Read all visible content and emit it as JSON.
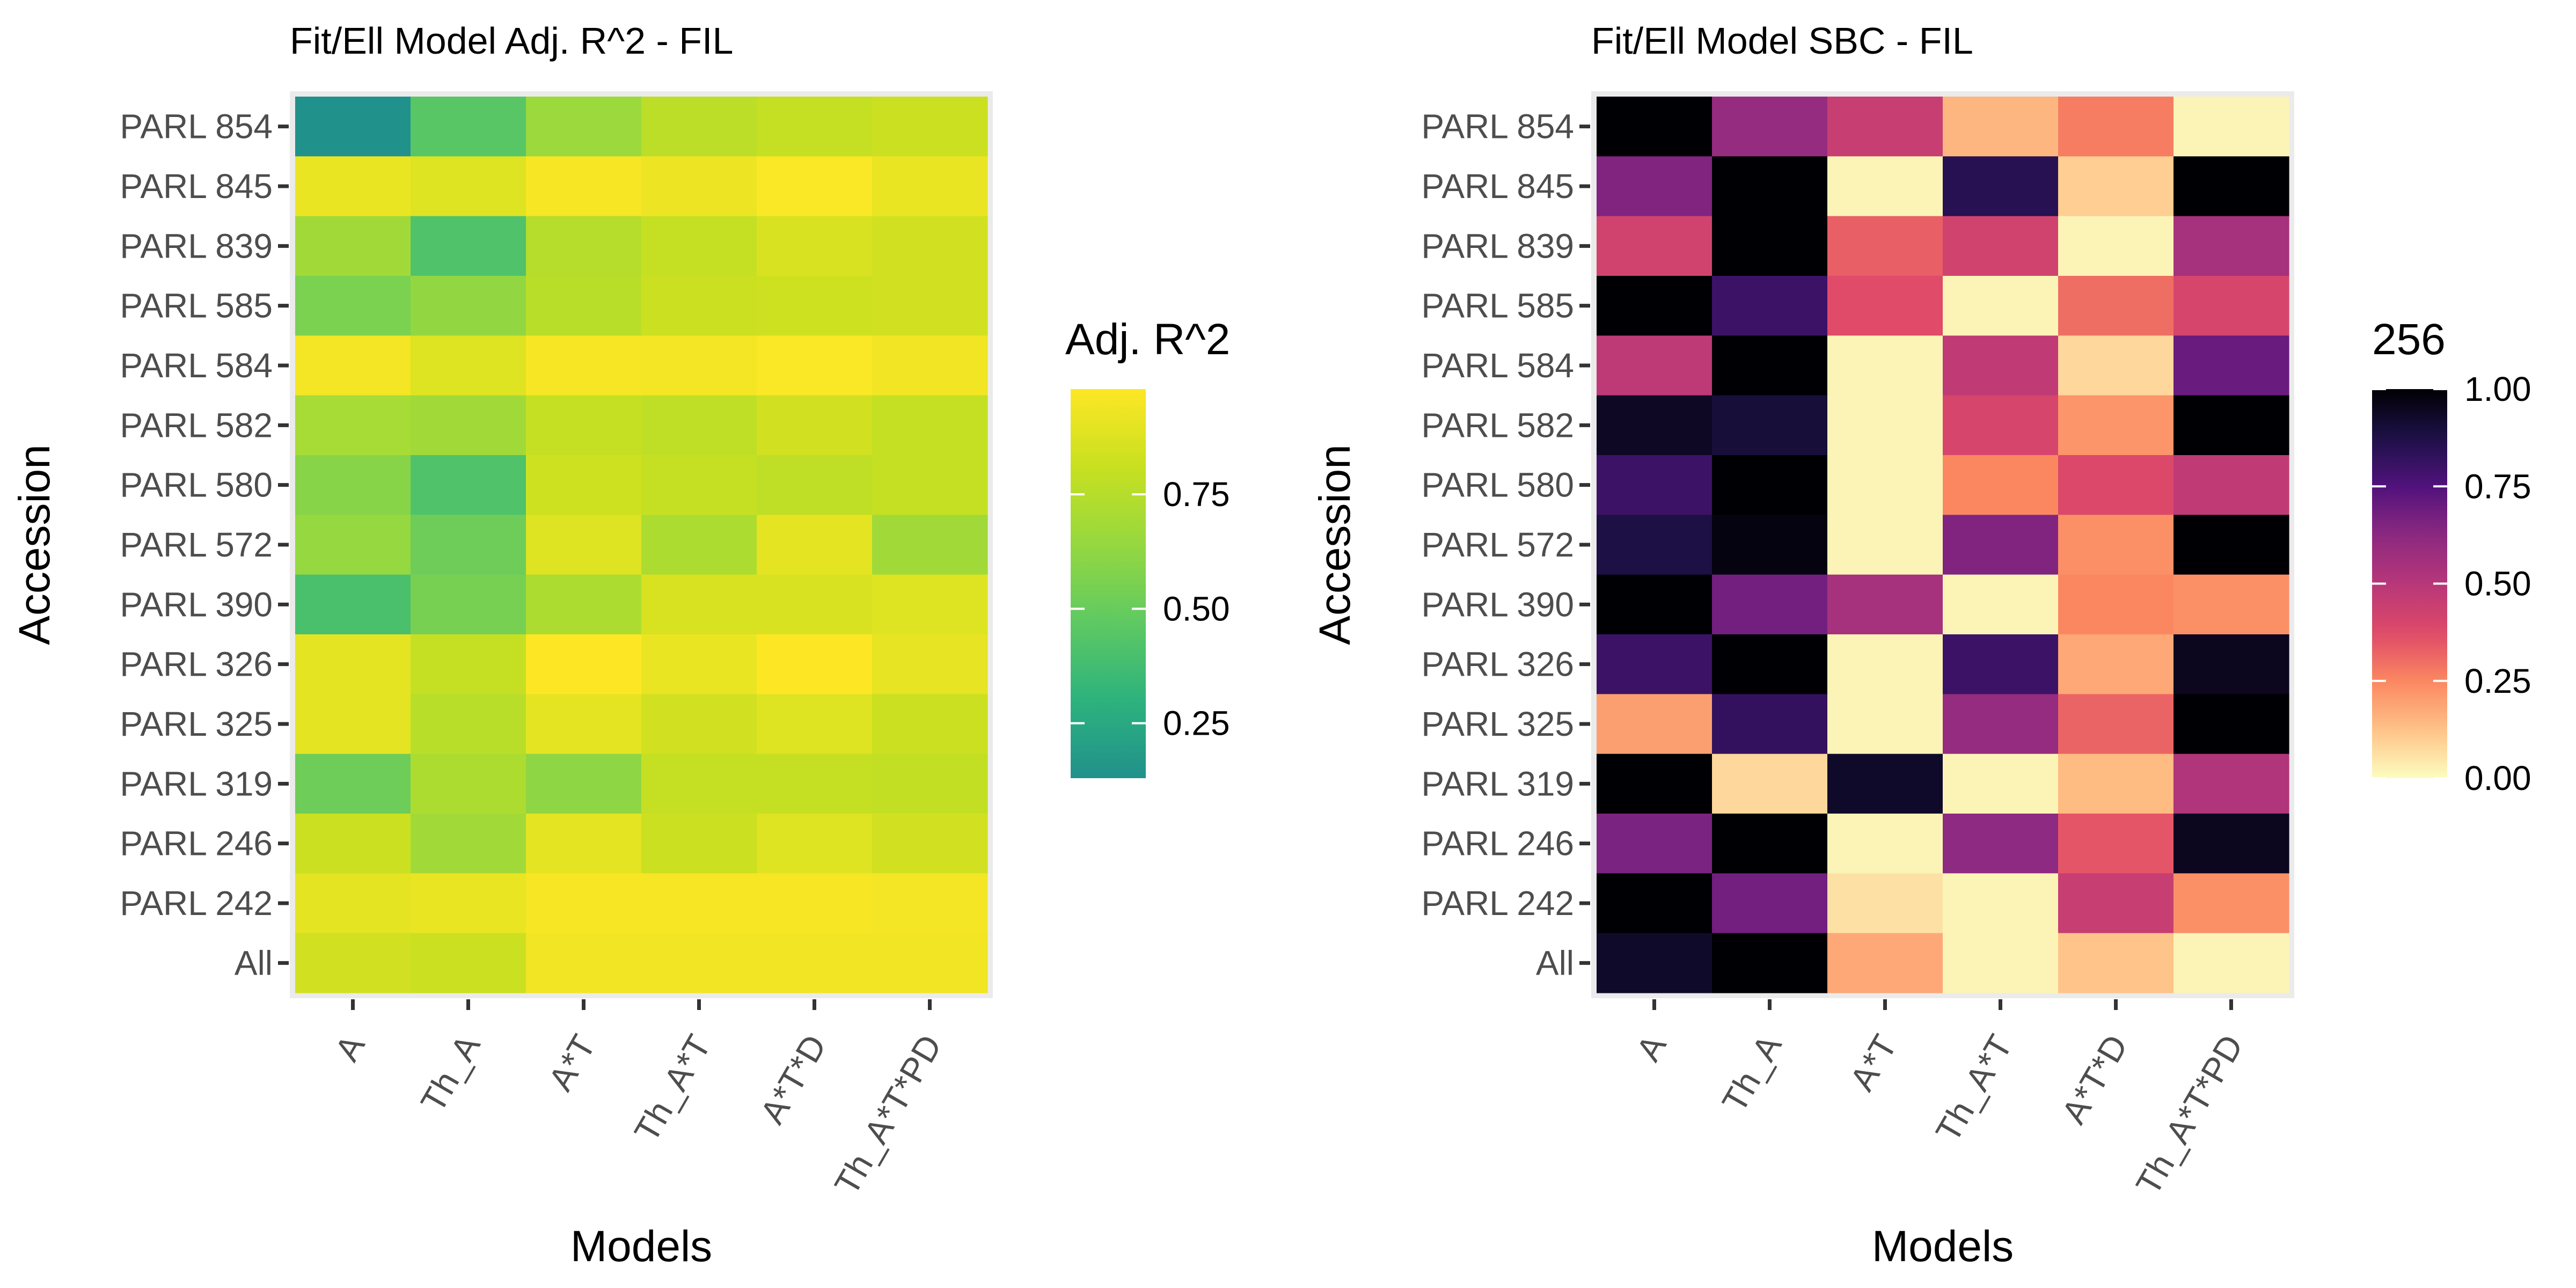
{
  "chart_data": [
    {
      "type": "heatmap",
      "title": "Fit/Ell Model Adj. R^2 - FIL",
      "xlabel": "Models",
      "ylabel": "Accession",
      "x_categories": [
        "A",
        "Th_A",
        "A*T",
        "Th_A*T",
        "A*T*D",
        "Th_A*T*PD"
      ],
      "y_categories": [
        "PARL 854",
        "PARL 845",
        "PARL 839",
        "PARL 585",
        "PARL 584",
        "PARL 582",
        "PARL 580",
        "PARL 572",
        "PARL 390",
        "PARL 326",
        "PARL 325",
        "PARL 319",
        "PARL 246",
        "PARL 242",
        "All"
      ],
      "values": [
        [
          0.13,
          0.45,
          0.66,
          0.77,
          0.8,
          0.82
        ],
        [
          0.92,
          0.88,
          0.96,
          0.93,
          0.97,
          0.92
        ],
        [
          0.68,
          0.42,
          0.75,
          0.8,
          0.86,
          0.84
        ],
        [
          0.56,
          0.63,
          0.76,
          0.82,
          0.83,
          0.84
        ],
        [
          0.95,
          0.88,
          0.96,
          0.95,
          0.97,
          0.94
        ],
        [
          0.7,
          0.68,
          0.8,
          0.78,
          0.84,
          0.8
        ],
        [
          0.6,
          0.42,
          0.83,
          0.8,
          0.78,
          0.8
        ],
        [
          0.64,
          0.52,
          0.88,
          0.72,
          0.9,
          0.68
        ],
        [
          0.4,
          0.55,
          0.72,
          0.86,
          0.86,
          0.88
        ],
        [
          0.9,
          0.8,
          0.98,
          0.92,
          0.98,
          0.91
        ],
        [
          0.9,
          0.76,
          0.9,
          0.84,
          0.88,
          0.82
        ],
        [
          0.52,
          0.72,
          0.62,
          0.8,
          0.8,
          0.79
        ],
        [
          0.82,
          0.68,
          0.9,
          0.82,
          0.88,
          0.84
        ],
        [
          0.9,
          0.92,
          0.96,
          0.96,
          0.96,
          0.95
        ],
        [
          0.84,
          0.82,
          0.94,
          0.94,
          0.94,
          0.94
        ]
      ],
      "legend_title": "Adj. R^2",
      "legend_ticks": [
        0.25,
        0.5,
        0.75
      ],
      "legend_tick_labels": [
        "0.25",
        "0.50",
        "0.75"
      ],
      "scale_range": [
        0.13,
        0.98
      ],
      "colormap": "viridis",
      "color_stops": [
        "#21918c",
        "#2db27d",
        "#5ec962",
        "#95d840",
        "#c8e020",
        "#fde725"
      ],
      "legend_position": "right",
      "panel_background": "#ebebeb"
    },
    {
      "type": "heatmap",
      "title": "Fit/Ell Model SBC - FIL",
      "xlabel": "Models",
      "ylabel": "Accession",
      "x_categories": [
        "A",
        "Th_A",
        "A*T",
        "Th_A*T",
        "A*T*D",
        "Th_A*T*PD"
      ],
      "y_categories": [
        "PARL 854",
        "PARL 845",
        "PARL 839",
        "PARL 585",
        "PARL 584",
        "PARL 582",
        "PARL 580",
        "PARL 572",
        "PARL 390",
        "PARL 326",
        "PARL 325",
        "PARL 319",
        "PARL 246",
        "PARL 242",
        "All"
      ],
      "values": [
        [
          1.0,
          0.6,
          0.45,
          0.15,
          0.27,
          0.02
        ],
        [
          0.65,
          1.0,
          0.02,
          0.85,
          0.1,
          1.0
        ],
        [
          0.42,
          1.0,
          0.33,
          0.42,
          0.02,
          0.55
        ],
        [
          1.0,
          0.8,
          0.37,
          0.02,
          0.3,
          0.4
        ],
        [
          0.48,
          1.0,
          0.02,
          0.47,
          0.08,
          0.7
        ],
        [
          0.94,
          0.9,
          0.02,
          0.4,
          0.22,
          1.0
        ],
        [
          0.8,
          1.0,
          0.02,
          0.25,
          0.38,
          0.47
        ],
        [
          0.88,
          0.98,
          0.02,
          0.65,
          0.23,
          1.0
        ],
        [
          1.0,
          0.68,
          0.55,
          0.02,
          0.25,
          0.23
        ],
        [
          0.8,
          1.0,
          0.02,
          0.8,
          0.18,
          0.95
        ],
        [
          0.2,
          0.82,
          0.02,
          0.6,
          0.32,
          1.0
        ],
        [
          1.0,
          0.08,
          0.93,
          0.02,
          0.14,
          0.52
        ],
        [
          0.66,
          1.0,
          0.02,
          0.62,
          0.35,
          0.95
        ],
        [
          1.0,
          0.68,
          0.06,
          0.02,
          0.45,
          0.23
        ],
        [
          0.93,
          1.0,
          0.18,
          0.02,
          0.12,
          0.02
        ]
      ],
      "legend_title": "256",
      "legend_ticks": [
        0.0,
        0.25,
        0.5,
        0.75,
        1.0
      ],
      "legend_tick_labels": [
        "0.00",
        "0.25",
        "0.50",
        "0.75",
        "1.00"
      ],
      "scale_range": [
        0.0,
        1.0
      ],
      "colormap": "magma_r",
      "color_stops": [
        "#fcfdbf",
        "#fec287",
        "#fb8761",
        "#de4968",
        "#b73779",
        "#8c2981",
        "#51127c",
        "#1d1147",
        "#000004"
      ],
      "legend_position": "right",
      "panel_background": "#ebebeb"
    }
  ]
}
